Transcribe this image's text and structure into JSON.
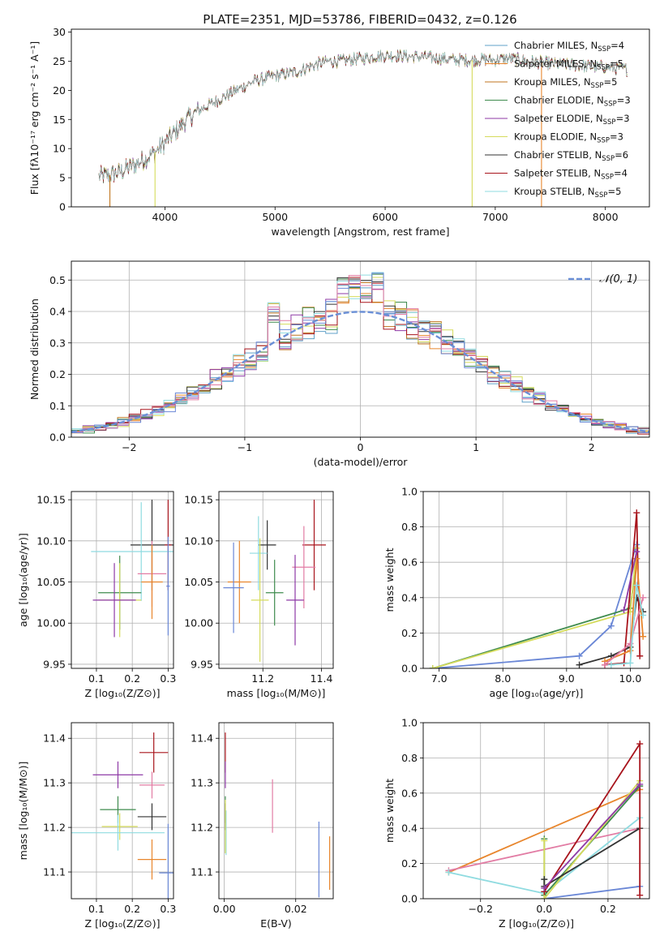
{
  "figure": {
    "title": "PLATE=2351, MJD=53786, FIBERID=0432, z=0.126",
    "model_colors": [
      "#5fa0c8",
      "#e8862d",
      "#c0761f",
      "#3f8b4e",
      "#8e3aa6",
      "#d5db5c",
      "#333333",
      "#a8141c",
      "#8fdbe0",
      "#6a87d6",
      "#e27ca4"
    ]
  },
  "chart_data": [
    {
      "id": "spectrum",
      "type": "line",
      "title": "PLATE=2351, MJD=53786, FIBERID=0432, z=0.126",
      "xlabel": "wavelength [Angstrom, rest frame]",
      "ylabel": "Flux [fλ10⁻¹⁷ erg cm⁻² s⁻¹ A⁻¹]",
      "xlim": [
        3150,
        8400
      ],
      "ylim": [
        0,
        30.5
      ],
      "xticks": [
        4000,
        5000,
        6000,
        7000,
        8000
      ],
      "yticks": [
        0,
        5,
        10,
        15,
        20,
        25,
        30
      ],
      "grid": false,
      "legend_position": "top-right",
      "x": [
        3400,
        3500,
        3600,
        3700,
        3800,
        3900,
        4000,
        4100,
        4200,
        4300,
        4400,
        4500,
        4600,
        4700,
        4800,
        4900,
        5000,
        5100,
        5200,
        5300,
        5400,
        5500,
        5600,
        5700,
        5800,
        5900,
        6000,
        6100,
        6200,
        6300,
        6400,
        6500,
        6600,
        6700,
        6800,
        6900,
        7000,
        7100,
        7200,
        7300,
        7400,
        7500,
        7600,
        7700,
        7800,
        7900,
        8000,
        8100,
        8200
      ],
      "flux": [
        5.2,
        5.5,
        6.0,
        7.0,
        8.0,
        9.2,
        11.0,
        13.0,
        15.0,
        16.5,
        17.5,
        18.5,
        19.5,
        20.5,
        21.5,
        22.0,
        22.5,
        22.8,
        23.2,
        24.0,
        24.6,
        25.0,
        25.0,
        25.3,
        25.5,
        25.8,
        26.0,
        26.0,
        25.8,
        25.8,
        25.6,
        25.5,
        25.3,
        25.2,
        25.2,
        25.3,
        25.2,
        25.5,
        25.3,
        25.0,
        24.8,
        24.6,
        24.4,
        24.4,
        24.2,
        24.0,
        24.0,
        23.8,
        23.6
      ],
      "series": [
        {
          "name": "Chabrier MILES, N_SSP=4",
          "legend": "Chabrier MILES, N",
          "nssp": "SSP",
          "count": "=4",
          "color": "#5fa0c8"
        },
        {
          "name": "Salpeter MILES, N_SSP=5",
          "legend": "Salpeter MILES, N",
          "nssp": "SSP",
          "count": "=5",
          "color": "#e8862d"
        },
        {
          "name": "Kroupa MILES, N_SSP=5",
          "legend": "Kroupa MILES, N",
          "nssp": "SSP",
          "count": "=5",
          "color": "#c0761f"
        },
        {
          "name": "Chabrier ELODIE, N_SSP=3",
          "legend": "Chabrier ELODIE, N",
          "nssp": "SSP",
          "count": "=3",
          "color": "#3f8b4e"
        },
        {
          "name": "Salpeter ELODIE, N_SSP=3",
          "legend": "Salpeter ELODIE, N",
          "nssp": "SSP",
          "count": "=3",
          "color": "#8e3aa6"
        },
        {
          "name": "Kroupa ELODIE, N_SSP=3",
          "legend": "Kroupa ELODIE, N",
          "nssp": "SSP",
          "count": "=3",
          "color": "#d5db5c"
        },
        {
          "name": "Chabrier STELIB, N_SSP=6",
          "legend": "Chabrier STELIB, N",
          "nssp": "SSP",
          "count": "=6",
          "color": "#333333"
        },
        {
          "name": "Salpeter STELIB, N_SSP=4",
          "legend": "Salpeter STELIB, N",
          "nssp": "SSP",
          "count": "=4",
          "color": "#a8141c"
        },
        {
          "name": "Kroupa STELIB, N_SSP=5",
          "legend": "Kroupa STELIB, N",
          "nssp": "SSP",
          "count": "=5",
          "color": "#8fdbe0"
        }
      ],
      "dropouts": [
        {
          "x": 3500,
          "color": "#c0761f"
        },
        {
          "x": 3910,
          "color": "#d5db5c"
        },
        {
          "x": 6790,
          "color": "#d5db5c"
        },
        {
          "x": 7420,
          "color": "#e8862d"
        }
      ]
    },
    {
      "id": "residuals",
      "type": "histogram",
      "xlabel": "(data-model)/error",
      "ylabel": "Normed distribution",
      "xlim": [
        -2.5,
        2.5
      ],
      "ylim": [
        0,
        0.56
      ],
      "xticks": [
        -2,
        -1,
        0,
        1,
        2
      ],
      "yticks": [
        0.0,
        0.1,
        0.2,
        0.3,
        0.4,
        0.5
      ],
      "grid": true,
      "legend_position": "top-right",
      "bin_width": 0.1,
      "reference": {
        "name": "N(0,1)",
        "legend": "𝒩(0, 1)",
        "color": "#6a8fd6"
      },
      "histogram": [
        0.01,
        0.012,
        0.015,
        0.022,
        0.028,
        0.035,
        0.05,
        0.06,
        0.075,
        0.095,
        0.115,
        0.135,
        0.16,
        0.185,
        0.215,
        0.245,
        0.265,
        0.3,
        0.34,
        0.37,
        0.36,
        0.35,
        0.33,
        0.355,
        0.365,
        0.38,
        0.395,
        0.405,
        0.43,
        0.45,
        0.48,
        0.47,
        0.44,
        0.43,
        0.42,
        0.4,
        0.38,
        0.36,
        0.35,
        0.33,
        0.31,
        0.3,
        0.28,
        0.24,
        0.21,
        0.175,
        0.15,
        0.125,
        0.105,
        0.085,
        0.065,
        0.055,
        0.045,
        0.04,
        0.03,
        0.025,
        0.02,
        0.018,
        0.016,
        0.015,
        0.01,
        0.01,
        0.008,
        0.007,
        0.006,
        0.005,
        0.004,
        0.004,
        0.003,
        0.003,
        0.002,
        0.002,
        0.002,
        0.002,
        0.002,
        0.002,
        0.002,
        0.002,
        0.002,
        0.002,
        0.002,
        0.002,
        0.002,
        0.002,
        0.002,
        0.002,
        0.002,
        0.002,
        0.002,
        0.002,
        0.002,
        0.002,
        0.002,
        0.002,
        0.002,
        0.002,
        0.002,
        0.002,
        0.002,
        0.002
      ]
    },
    {
      "id": "age-vs-z",
      "type": "scatter",
      "xlabel": "Z [log₁₀(Z/Z⊙)]",
      "ylabel": "age  [log₁₀(age/yr)]",
      "xlim": [
        0.03,
        0.315
      ],
      "ylim": [
        9.945,
        10.16
      ],
      "xticks": [
        0.1,
        0.2,
        0.3
      ],
      "yticks": [
        9.95,
        10.0,
        10.05,
        10.1,
        10.15
      ],
      "grid": true,
      "points": [
        {
          "x": 0.255,
          "y": 10.095,
          "xerr": 0.06,
          "yerr": 0.055,
          "color": "#333333"
        },
        {
          "x": 0.3,
          "y": 10.095,
          "xerr": 0.01,
          "yerr": 0.055,
          "color": "#a8141c"
        },
        {
          "x": 0.225,
          "y": 10.087,
          "xerr": 0.14,
          "yerr": 0.06,
          "color": "#8fdbe0"
        },
        {
          "x": 0.255,
          "y": 10.06,
          "xerr": 0.04,
          "yerr": 0.04,
          "color": "#e27ca4"
        },
        {
          "x": 0.255,
          "y": 10.05,
          "xerr": 0.03,
          "yerr": 0.045,
          "color": "#e8862d"
        },
        {
          "x": 0.3,
          "y": 10.045,
          "xerr": 0.005,
          "yerr": 0.06,
          "color": "#6a87d6"
        },
        {
          "x": 0.165,
          "y": 10.037,
          "xerr": 0.06,
          "yerr": 0.045,
          "color": "#3f8b4e"
        },
        {
          "x": 0.165,
          "y": 10.028,
          "xerr": 0.06,
          "yerr": 0.045,
          "color": "#d5db5c"
        },
        {
          "x": 0.15,
          "y": 10.028,
          "xerr": 0.06,
          "yerr": 0.045,
          "color": "#8e3aa6"
        }
      ]
    },
    {
      "id": "age-vs-mass",
      "type": "scatter",
      "xlabel": "mass [log₁₀(M/M⊙)]",
      "xlim": [
        11.05,
        11.44
      ],
      "ylim": [
        9.945,
        10.16
      ],
      "xticks": [
        11.2,
        11.4
      ],
      "yticks": [
        9.95,
        10.0,
        10.05,
        10.1,
        10.15
      ],
      "grid": true,
      "points": [
        {
          "x": 11.215,
          "y": 10.095,
          "xerr": 0.03,
          "yerr": 0.03,
          "color": "#333333"
        },
        {
          "x": 11.375,
          "y": 10.095,
          "xerr": 0.04,
          "yerr": 0.055,
          "color": "#a8141c"
        },
        {
          "x": 11.185,
          "y": 10.085,
          "xerr": 0.03,
          "yerr": 0.045,
          "color": "#8fdbe0"
        },
        {
          "x": 11.34,
          "y": 10.068,
          "xerr": 0.04,
          "yerr": 0.05,
          "color": "#e27ca4"
        },
        {
          "x": 11.12,
          "y": 10.05,
          "xerr": 0.04,
          "yerr": 0.05,
          "color": "#e8862d"
        },
        {
          "x": 11.1,
          "y": 10.043,
          "xerr": 0.035,
          "yerr": 0.055,
          "color": "#6a87d6"
        },
        {
          "x": 11.24,
          "y": 10.037,
          "xerr": 0.03,
          "yerr": 0.04,
          "color": "#3f8b4e"
        },
        {
          "x": 11.19,
          "y": 10.028,
          "xerr": 0.03,
          "yerr": 0.075,
          "color": "#d5db5c"
        },
        {
          "x": 11.31,
          "y": 10.028,
          "xerr": 0.03,
          "yerr": 0.055,
          "color": "#8e3aa6"
        }
      ]
    },
    {
      "id": "weight-vs-age",
      "type": "line",
      "xlabel": "age  [log₁₀(age/yr)]",
      "ylabel": "mass weight",
      "xlim": [
        6.75,
        10.3
      ],
      "ylim": [
        0,
        1.0
      ],
      "xticks": [
        7,
        8,
        9,
        10
      ],
      "yticks": [
        0.0,
        0.2,
        0.4,
        0.6,
        0.8,
        1.0
      ],
      "grid": true,
      "series": [
        {
          "color": "#6a87d6",
          "x": [
            6.9,
            9.2,
            9.7,
            10.1
          ],
          "y": [
            0.0,
            0.07,
            0.24,
            0.7
          ]
        },
        {
          "color": "#3f8b4e",
          "x": [
            6.9,
            10.0,
            10.1
          ],
          "y": [
            0.0,
            0.34,
            0.62
          ]
        },
        {
          "color": "#d5db5c",
          "x": [
            6.9,
            10.0,
            10.1
          ],
          "y": [
            0.0,
            0.32,
            0.68
          ]
        },
        {
          "color": "#333333",
          "x": [
            9.2,
            9.7,
            10.0,
            10.1,
            10.2
          ],
          "y": [
            0.02,
            0.07,
            0.12,
            0.4,
            0.32
          ]
        },
        {
          "color": "#a8141c",
          "x": [
            9.6,
            9.9,
            10.1,
            10.15
          ],
          "y": [
            0.02,
            0.03,
            0.88,
            0.07
          ]
        },
        {
          "color": "#e8862d",
          "x": [
            9.6,
            10.0,
            10.1,
            10.2
          ],
          "y": [
            0.04,
            0.1,
            0.62,
            0.18
          ]
        },
        {
          "color": "#e27ca4",
          "x": [
            9.6,
            10.0,
            10.2
          ],
          "y": [
            0.02,
            0.14,
            0.4
          ]
        },
        {
          "color": "#8fdbe0",
          "x": [
            9.7,
            10.0,
            10.1,
            10.2
          ],
          "y": [
            0.02,
            0.03,
            0.47,
            0.3
          ]
        },
        {
          "color": "#8e3aa6",
          "x": [
            9.9,
            10.1
          ],
          "y": [
            0.33,
            0.66
          ]
        }
      ]
    },
    {
      "id": "mass-vs-z",
      "type": "scatter",
      "xlabel": "Z [log₁₀(Z/Z⊙)]",
      "ylabel": "mass [log₁₀(M/M⊙)]",
      "xlim": [
        0.03,
        0.315
      ],
      "ylim": [
        11.04,
        11.435
      ],
      "xticks": [
        0.1,
        0.2,
        0.3
      ],
      "yticks": [
        11.1,
        11.2,
        11.3,
        11.4
      ],
      "grid": true,
      "points": [
        {
          "x": 0.26,
          "y": 11.368,
          "xerr": 0.04,
          "yerr": 0.045,
          "color": "#a8141c"
        },
        {
          "x": 0.16,
          "y": 11.318,
          "xerr": 0.07,
          "yerr": 0.03,
          "color": "#8e3aa6"
        },
        {
          "x": 0.255,
          "y": 11.295,
          "xerr": 0.035,
          "yerr": 0.03,
          "color": "#e27ca4"
        },
        {
          "x": 0.16,
          "y": 11.24,
          "xerr": 0.05,
          "yerr": 0.03,
          "color": "#3f8b4e"
        },
        {
          "x": 0.255,
          "y": 11.224,
          "xerr": 0.04,
          "yerr": 0.03,
          "color": "#333333"
        },
        {
          "x": 0.165,
          "y": 11.202,
          "xerr": 0.05,
          "yerr": 0.03,
          "color": "#d5db5c"
        },
        {
          "x": 0.16,
          "y": 11.188,
          "xerr": 0.13,
          "yerr": 0.04,
          "color": "#8fdbe0"
        },
        {
          "x": 0.255,
          "y": 11.128,
          "xerr": 0.04,
          "yerr": 0.045,
          "color": "#e8862d"
        },
        {
          "x": 0.3,
          "y": 11.098,
          "xerr": 0.025,
          "yerr": 0.11,
          "color": "#6a87d6"
        }
      ]
    },
    {
      "id": "mass-vs-ebv",
      "type": "scatter",
      "xlabel": "E(B-V)",
      "xlim": [
        -0.0015,
        0.0305
      ],
      "ylim": [
        11.04,
        11.435
      ],
      "xticks": [
        0.0,
        0.02
      ],
      "yticks": [
        11.1,
        11.2,
        11.3,
        11.4
      ],
      "grid": true,
      "points": [
        {
          "x": 0.0003,
          "y": 11.368,
          "xerr": 0.0,
          "yerr": 0.045,
          "color": "#a8141c"
        },
        {
          "x": 0.0003,
          "y": 11.318,
          "xerr": 0.0,
          "yerr": 0.03,
          "color": "#8e3aa6"
        },
        {
          "x": 0.0003,
          "y": 11.24,
          "xerr": 0.0,
          "yerr": 0.03,
          "color": "#3f8b4e"
        },
        {
          "x": 0.0005,
          "y": 11.188,
          "xerr": 0.0,
          "yerr": 0.05,
          "color": "#8fdbe0"
        },
        {
          "x": 0.0003,
          "y": 11.224,
          "xerr": 0.0,
          "yerr": 0.03,
          "color": "#333333"
        },
        {
          "x": 0.0003,
          "y": 11.202,
          "xerr": 0.0,
          "yerr": 0.06,
          "color": "#d5db5c"
        },
        {
          "x": 0.0135,
          "y": 11.248,
          "xerr": 0.0,
          "yerr": 0.06,
          "color": "#e27ca4"
        },
        {
          "x": 0.0265,
          "y": 11.128,
          "xerr": 0.0,
          "yerr": 0.085,
          "color": "#6a87d6"
        },
        {
          "x": 0.0295,
          "y": 11.12,
          "xerr": 0.0,
          "yerr": 0.06,
          "color": "#e8862d"
        }
      ]
    },
    {
      "id": "weight-vs-z",
      "type": "line",
      "xlabel": "Z [log₁₀(Z/Z⊙)]",
      "ylabel": "mass weight",
      "xlim": [
        -0.38,
        0.33
      ],
      "ylim": [
        0,
        1.0
      ],
      "xticks": [
        -0.2,
        0.0,
        0.2
      ],
      "yticks": [
        0.0,
        0.2,
        0.4,
        0.6,
        0.8,
        1.0
      ],
      "grid": true,
      "series": [
        {
          "color": "#e8862d",
          "x": [
            -0.3,
            0.3
          ],
          "y": [
            0.15,
            0.62
          ]
        },
        {
          "color": "#e27ca4",
          "x": [
            -0.3,
            0.3
          ],
          "y": [
            0.16,
            0.4
          ]
        },
        {
          "color": "#8fdbe0",
          "x": [
            -0.3,
            0.0,
            0.3
          ],
          "y": [
            0.15,
            0.03,
            0.46
          ]
        },
        {
          "color": "#6a87d6",
          "x": [
            0.0,
            0.3
          ],
          "y": [
            0.0,
            0.07
          ]
        },
        {
          "color": "#3f8b4e",
          "x": [
            0.0,
            0.0,
            0.3
          ],
          "y": [
            0.34,
            0.02,
            0.64
          ]
        },
        {
          "color": "#d5db5c",
          "x": [
            0.0,
            0.0,
            0.3
          ],
          "y": [
            0.33,
            0.0,
            0.67
          ]
        },
        {
          "color": "#333333",
          "x": [
            0.0,
            0.0,
            0.3
          ],
          "y": [
            0.11,
            0.07,
            0.4
          ]
        },
        {
          "color": "#a8141c",
          "x": [
            0.0,
            0.3,
            0.3
          ],
          "y": [
            0.04,
            0.88,
            0.02
          ]
        },
        {
          "color": "#8e3aa6",
          "x": [
            0.0,
            0.3
          ],
          "y": [
            0.06,
            0.65
          ]
        }
      ]
    }
  ]
}
